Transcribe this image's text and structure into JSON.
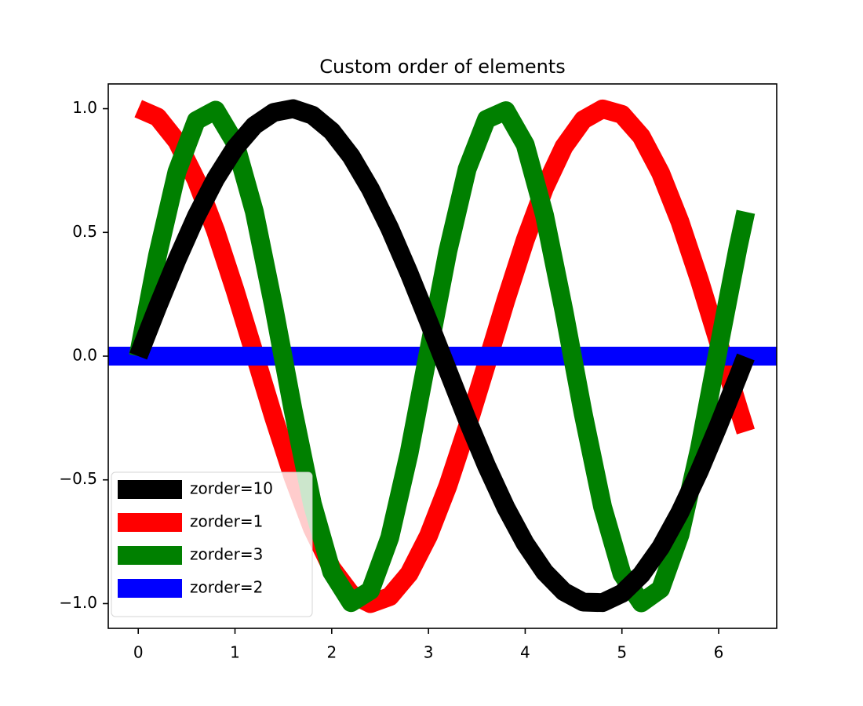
{
  "chart_data": {
    "type": "line",
    "title": "Custom order of elements",
    "x": [
      0,
      0.2,
      0.4,
      0.6,
      0.8,
      1.0,
      1.2,
      1.4,
      1.6,
      1.8,
      2.0,
      2.2,
      2.4,
      2.6,
      2.8,
      3.0,
      3.2,
      3.4,
      3.6,
      3.8,
      4.0,
      4.2,
      4.4,
      4.6,
      4.8,
      5.0,
      5.2,
      5.4,
      5.6,
      5.8,
      6.0,
      6.2,
      6.28
    ],
    "series": [
      {
        "name": "zorder=10",
        "color": "black",
        "zorder": 10,
        "values": [
          0,
          0.199,
          0.389,
          0.565,
          0.717,
          0.841,
          0.932,
          0.985,
          1.0,
          0.974,
          0.909,
          0.808,
          0.675,
          0.516,
          0.335,
          0.141,
          -0.058,
          -0.256,
          -0.443,
          -0.612,
          -0.757,
          -0.872,
          -0.952,
          -0.994,
          -0.996,
          -0.959,
          -0.883,
          -0.773,
          -0.631,
          -0.465,
          -0.279,
          -0.083,
          -0.003
        ]
      },
      {
        "name": "zorder=1",
        "color": "red",
        "zorder": 1,
        "values": [
          1,
          0.966,
          0.868,
          0.711,
          0.506,
          0.267,
          0.011,
          -0.247,
          -0.488,
          -0.696,
          -0.857,
          -0.961,
          -1.0,
          -0.972,
          -0.879,
          -0.726,
          -0.525,
          -0.288,
          -0.033,
          0.226,
          0.469,
          0.68,
          0.846,
          0.955,
          0.999,
          0.977,
          0.888,
          0.74,
          0.543,
          0.309,
          0.054,
          -0.205,
          -0.305
        ]
      },
      {
        "name": "zorder=3",
        "color": "green",
        "zorder": 3,
        "values": [
          0,
          0.408,
          0.745,
          0.952,
          0.994,
          0.863,
          0.584,
          0.2,
          -0.217,
          -0.597,
          -0.872,
          -0.996,
          -0.947,
          -0.733,
          -0.392,
          0.017,
          0.423,
          0.756,
          0.957,
          0.992,
          0.855,
          0.569,
          0.184,
          -0.233,
          -0.609,
          -0.88,
          -0.997,
          -0.941,
          -0.722,
          -0.377,
          0.034,
          0.438,
          0.583
        ]
      }
    ],
    "hlines": [
      {
        "name": "zorder=2",
        "color": "blue",
        "zorder": 2,
        "y": 0
      }
    ],
    "legend_order": [
      "series.0",
      "series.1",
      "series.2",
      "hlines.0"
    ],
    "legend": "lower left",
    "xlim": [
      -0.31,
      6.6
    ],
    "ylim": [
      -1.1,
      1.1
    ],
    "xticks": [
      0,
      1,
      2,
      3,
      4,
      5,
      6
    ],
    "yticks": [
      {
        "value": -1.0,
        "label": "−1.0"
      },
      {
        "value": -0.5,
        "label": "−0.5"
      },
      {
        "value": 0.0,
        "label": "0.0"
      },
      {
        "value": 0.5,
        "label": "0.5"
      },
      {
        "value": 1.0,
        "label": "1.0"
      }
    ]
  }
}
